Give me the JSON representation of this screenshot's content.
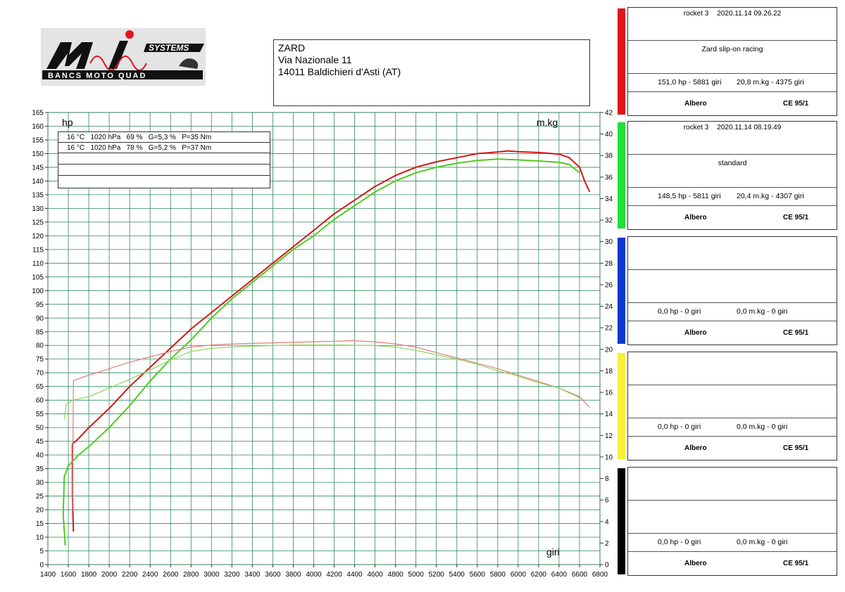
{
  "logo": {
    "brand": "SYSTEMS",
    "tagline": "BANCS MOTO QUAD"
  },
  "address": {
    "lines": [
      "ZARD",
      "Via Nazionale 11",
      "14011 Baldichieri d'Asti (AT)"
    ]
  },
  "conditions": [
    "16 °C   1020 hPa   69 %   G=5,3 %   P=35 Nm",
    "16 °C   1020 hPa   78 %   G=5,2 %   P=37 Nm"
  ],
  "panels": [
    {
      "color": "#e0141c",
      "model": "rocket 3",
      "datetime": "2020.11.14 09.26.22",
      "label": "Zard slip-on racing",
      "hp": "151,0 hp - 5881 giri",
      "torque": "20,8 m.kg - 4375 giri",
      "shaft": "Albero",
      "norm": "CE 95/1"
    },
    {
      "color": "#1ee03a",
      "model": "rocket 3",
      "datetime": "2020.11.14 08.19.49",
      "label": "standard",
      "hp": "148,5 hp - 5811 giri",
      "torque": "20,4 m.kg - 4307 giri",
      "shaft": "Albero",
      "norm": "CE 95/1"
    },
    {
      "color": "#0a3ad0",
      "model": "",
      "datetime": "",
      "label": "",
      "hp": "0,0 hp - 0 giri",
      "torque": "0,0 m.kg - 0 giri",
      "shaft": "Albero",
      "norm": "CE 95/1"
    },
    {
      "color": "#f5f03a",
      "model": "",
      "datetime": "",
      "label": "",
      "hp": "0,0 hp - 0 giri",
      "torque": "0,0 m.kg - 0 giri",
      "shaft": "Albero",
      "norm": "CE 95/1"
    },
    {
      "color": "#000000",
      "model": "",
      "datetime": "",
      "label": "",
      "hp": "0,0 hp - 0 giri",
      "torque": "0,0 m.kg - 0 giri",
      "shaft": "Albero",
      "norm": "CE 95/1"
    }
  ],
  "chart_data": {
    "type": "line",
    "ylabel": "hp",
    "y2label": "m.kg",
    "xlabel": "giri",
    "xlim": [
      1400,
      6800
    ],
    "ylim": [
      0,
      165
    ],
    "y2lim": [
      0,
      42
    ],
    "grid": true,
    "x_ticks": [
      1400,
      1600,
      1800,
      2000,
      2200,
      2400,
      2600,
      2800,
      3000,
      3200,
      3400,
      3600,
      3800,
      4000,
      4200,
      4400,
      4600,
      4800,
      5000,
      5200,
      5400,
      5600,
      5800,
      6000,
      6200,
      6400,
      6600,
      6800
    ],
    "y_ticks": [
      0,
      5,
      10,
      15,
      20,
      25,
      30,
      35,
      40,
      45,
      50,
      55,
      60,
      65,
      70,
      75,
      80,
      85,
      90,
      95,
      100,
      105,
      110,
      115,
      120,
      125,
      130,
      135,
      140,
      145,
      150,
      155,
      160,
      165
    ],
    "y2_ticks": [
      0,
      2,
      4,
      6,
      8,
      10,
      12,
      14,
      16,
      18,
      20,
      22,
      24,
      26,
      28,
      30,
      32,
      34,
      36,
      38,
      40,
      42
    ],
    "series": [
      {
        "name": "Zard slip-on racing - power",
        "axis": "hp",
        "color": "#d01818",
        "width": 2,
        "points": [
          [
            1650,
            12
          ],
          [
            1640,
            25
          ],
          [
            1640,
            44
          ],
          [
            1700,
            46
          ],
          [
            1800,
            50
          ],
          [
            2000,
            57
          ],
          [
            2200,
            65
          ],
          [
            2400,
            72
          ],
          [
            2600,
            79
          ],
          [
            2800,
            86
          ],
          [
            3000,
            92
          ],
          [
            3200,
            98
          ],
          [
            3400,
            104
          ],
          [
            3600,
            110
          ],
          [
            3800,
            116
          ],
          [
            4000,
            122
          ],
          [
            4200,
            128
          ],
          [
            4400,
            133
          ],
          [
            4600,
            138
          ],
          [
            4800,
            142
          ],
          [
            5000,
            145
          ],
          [
            5200,
            147
          ],
          [
            5400,
            148.5
          ],
          [
            5600,
            150
          ],
          [
            5800,
            150.6
          ],
          [
            5900,
            151
          ],
          [
            6000,
            150.7
          ],
          [
            6200,
            150.4
          ],
          [
            6400,
            149.8
          ],
          [
            6500,
            148.5
          ],
          [
            6600,
            145
          ],
          [
            6650,
            140
          ],
          [
            6700,
            136
          ]
        ]
      },
      {
        "name": "standard - power",
        "axis": "hp",
        "color": "#4ecb1e",
        "width": 2,
        "points": [
          [
            1570,
            7
          ],
          [
            1550,
            18
          ],
          [
            1560,
            32
          ],
          [
            1600,
            36
          ],
          [
            1700,
            40
          ],
          [
            1800,
            43
          ],
          [
            2000,
            50
          ],
          [
            2200,
            58
          ],
          [
            2400,
            67
          ],
          [
            2600,
            75
          ],
          [
            2800,
            82
          ],
          [
            3000,
            90
          ],
          [
            3200,
            97
          ],
          [
            3400,
            103
          ],
          [
            3600,
            109
          ],
          [
            3800,
            115
          ],
          [
            4000,
            120
          ],
          [
            4200,
            126
          ],
          [
            4400,
            131
          ],
          [
            4600,
            136
          ],
          [
            4800,
            140
          ],
          [
            5000,
            143
          ],
          [
            5200,
            145
          ],
          [
            5400,
            146.5
          ],
          [
            5600,
            147.5
          ],
          [
            5800,
            148
          ],
          [
            6000,
            147.7
          ],
          [
            6200,
            147.3
          ],
          [
            6400,
            146.8
          ],
          [
            6500,
            146
          ],
          [
            6600,
            143
          ]
        ]
      },
      {
        "name": "Zard slip-on racing - torque",
        "axis": "mkg",
        "color": "#e07a78",
        "width": 1.2,
        "points": [
          [
            1640,
            5
          ],
          [
            1650,
            17.1
          ],
          [
            1800,
            17.6
          ],
          [
            2000,
            18.2
          ],
          [
            2200,
            18.8
          ],
          [
            2400,
            19.3
          ],
          [
            2600,
            19.8
          ],
          [
            2800,
            20.2
          ],
          [
            3000,
            20.4
          ],
          [
            3200,
            20.5
          ],
          [
            3400,
            20.55
          ],
          [
            3600,
            20.6
          ],
          [
            3800,
            20.65
          ],
          [
            4000,
            20.7
          ],
          [
            4200,
            20.75
          ],
          [
            4375,
            20.8
          ],
          [
            4600,
            20.7
          ],
          [
            4800,
            20.5
          ],
          [
            5000,
            20.2
          ],
          [
            5200,
            19.7
          ],
          [
            5400,
            19.2
          ],
          [
            5600,
            18.7
          ],
          [
            5800,
            18.2
          ],
          [
            6000,
            17.6
          ],
          [
            6200,
            17.0
          ],
          [
            6400,
            16.4
          ],
          [
            6600,
            15.6
          ],
          [
            6700,
            14.6
          ]
        ]
      },
      {
        "name": "standard - torque",
        "axis": "mkg",
        "color": "#8cd65a",
        "width": 1.2,
        "points": [
          [
            1560,
            13.5
          ],
          [
            1580,
            14.9
          ],
          [
            1650,
            15.3
          ],
          [
            1800,
            15.6
          ],
          [
            2000,
            16.4
          ],
          [
            2200,
            17.2
          ],
          [
            2400,
            18.1
          ],
          [
            2600,
            19.0
          ],
          [
            2800,
            19.8
          ],
          [
            3000,
            20.1
          ],
          [
            3200,
            20.2
          ],
          [
            3400,
            20.3
          ],
          [
            3600,
            20.35
          ],
          [
            3800,
            20.4
          ],
          [
            4000,
            20.4
          ],
          [
            4307,
            20.4
          ],
          [
            4600,
            20.35
          ],
          [
            4800,
            20.2
          ],
          [
            5000,
            19.9
          ],
          [
            5200,
            19.5
          ],
          [
            5400,
            19.1
          ],
          [
            5600,
            18.6
          ],
          [
            5800,
            18.0
          ],
          [
            6000,
            17.5
          ],
          [
            6200,
            16.9
          ],
          [
            6400,
            16.4
          ],
          [
            6600,
            15.5
          ]
        ]
      }
    ]
  }
}
